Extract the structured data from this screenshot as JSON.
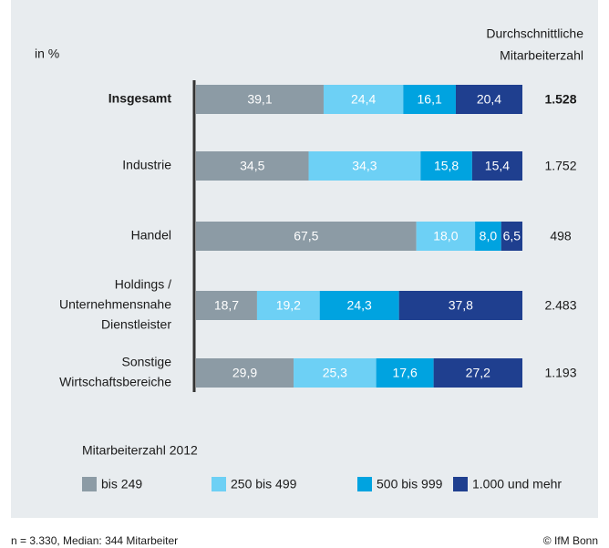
{
  "chart_data": {
    "type": "stacked-bar-horizontal",
    "unit_label": "in %",
    "categories": [
      [
        "Insgesamt"
      ],
      [
        "Industrie"
      ],
      [
        "Handel"
      ],
      [
        "Holdings /",
        "Unternehmensnahe",
        "Dienstleister"
      ],
      [
        "Sonstige",
        "Wirtschaftsbereiche"
      ]
    ],
    "highlight_index": 0,
    "xlim": [
      0,
      100
    ],
    "series": [
      {
        "name": "bis 249",
        "color": "#8c9ba5",
        "values": [
          39.1,
          34.5,
          67.5,
          18.7,
          29.9
        ],
        "value_labels": [
          "39,1",
          "34,5",
          "67,5",
          "18,7",
          "29,9"
        ]
      },
      {
        "name": "250 bis 499",
        "color": "#6dd0f5",
        "values": [
          24.4,
          34.3,
          18.0,
          19.2,
          25.3
        ],
        "value_labels": [
          "24,4",
          "34,3",
          "18,0",
          "19,2",
          "25,3"
        ]
      },
      {
        "name": "500 bis 999",
        "color": "#00a3e0",
        "values": [
          16.1,
          15.8,
          8.0,
          24.3,
          17.6
        ],
        "value_labels": [
          "16,1",
          "15,8",
          "8,0",
          "24,3",
          "17,6"
        ]
      },
      {
        "name": "1.000 und mehr",
        "color": "#1f3f8f",
        "values": [
          20.4,
          15.4,
          6.5,
          37.8,
          27.2
        ],
        "value_labels": [
          "20,4",
          "15,4",
          "6,5",
          "37,8",
          "27,2"
        ]
      }
    ],
    "legend_title": "Mitarbeiterzahl 2012",
    "right_column": {
      "title": [
        "Durchschnittliche",
        "Mitarbeiterzahl"
      ],
      "values": [
        1528,
        1752,
        498,
        2483,
        1193
      ],
      "value_labels": [
        "1.528",
        "1.752",
        "498",
        "2.483",
        "1.193"
      ]
    },
    "footnote": "n = 3.330, Median: 344 Mitarbeiter",
    "source": "© IfM Bonn"
  }
}
